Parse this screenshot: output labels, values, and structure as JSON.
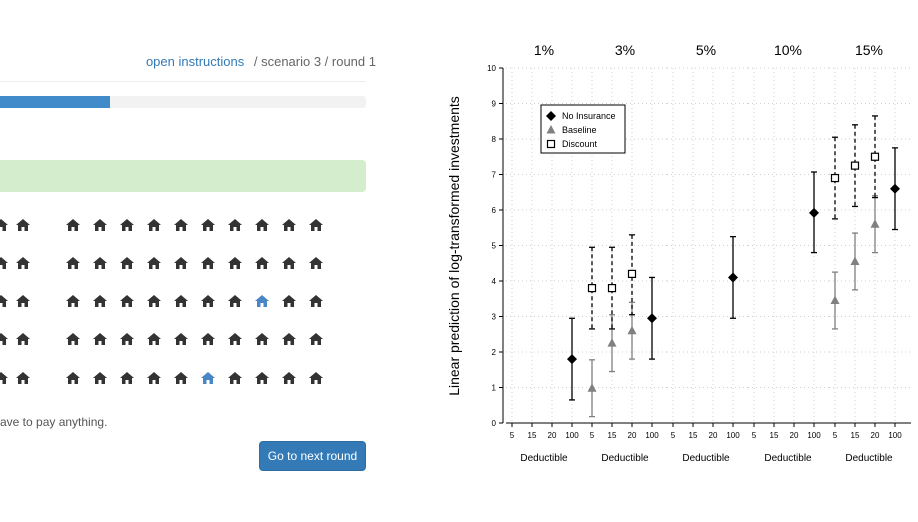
{
  "header": {
    "instructions_link": "open instructions",
    "scenario_round": "/ scenario 3 / round 1"
  },
  "progress": {
    "value_percent": 30
  },
  "houses": {
    "colors": {
      "default": "#333333",
      "highlight": "#4a86c6"
    },
    "icon": "house-icon",
    "rows": [
      [
        "d",
        "d",
        "d",
        "d",
        "d",
        "d",
        "d",
        "d",
        "d",
        "d",
        "d"
      ],
      [
        "d",
        "d",
        "d",
        "d",
        "d",
        "d",
        "d",
        "d",
        "d",
        "d",
        "d"
      ],
      [
        "d",
        "d",
        "d",
        "d",
        "d",
        "d",
        "d",
        "d",
        "h",
        "d",
        "d"
      ],
      [
        "d",
        "d",
        "d",
        "d",
        "d",
        "d",
        "d",
        "d",
        "d",
        "d",
        "d"
      ],
      [
        "d",
        "d",
        "d",
        "d",
        "d",
        "d",
        "h",
        "d",
        "d",
        "d",
        "d"
      ]
    ]
  },
  "notice_text": "ave to pay anything.",
  "next_button": {
    "label": "Go to next round"
  },
  "chart_data": {
    "type": "scatter",
    "ylabel": "Linear prediction of log-transformed investments",
    "ylim": [
      0,
      10
    ],
    "yticks": [
      "0",
      "1",
      "2",
      "3",
      "4",
      "5",
      "6",
      "7",
      "8",
      "9",
      "10"
    ],
    "panels": [
      "1%",
      "3%",
      "5%",
      "10%",
      "15%"
    ],
    "xtick_labels": [
      "5",
      "15",
      "20",
      "100"
    ],
    "xlabel": "Deductible",
    "legend": {
      "position": "top-left",
      "entries": [
        "No Insurance",
        "Baseline",
        "Discount"
      ]
    },
    "grid": true,
    "series": [
      {
        "name": "No Insurance",
        "marker": "diamond",
        "color": "#000000",
        "points": [
          {
            "panel": "1%",
            "x": "100",
            "y": 1.8,
            "lo": 0.65,
            "hi": 2.95
          },
          {
            "panel": "3%",
            "x": "100",
            "y": 2.95,
            "lo": 1.8,
            "hi": 4.1
          },
          {
            "panel": "5%",
            "x": "100",
            "y": 4.1,
            "lo": 2.95,
            "hi": 5.25
          },
          {
            "panel": "10%",
            "x": "100",
            "y": 5.92,
            "lo": 4.8,
            "hi": 7.07
          },
          {
            "panel": "15%",
            "x": "100",
            "y": 6.6,
            "lo": 5.45,
            "hi": 7.75
          }
        ]
      },
      {
        "name": "Baseline",
        "marker": "triangle",
        "color": "#808080",
        "points": [
          {
            "panel": "3%",
            "x": "5",
            "y": 0.98,
            "lo": 0.18,
            "hi": 1.78
          },
          {
            "panel": "3%",
            "x": "15",
            "y": 2.25,
            "lo": 1.45,
            "hi": 3.05
          },
          {
            "panel": "3%",
            "x": "20",
            "y": 2.6,
            "lo": 1.8,
            "hi": 3.4
          },
          {
            "panel": "15%",
            "x": "5",
            "y": 3.45,
            "lo": 2.65,
            "hi": 4.25
          },
          {
            "panel": "15%",
            "x": "15",
            "y": 4.55,
            "lo": 3.75,
            "hi": 5.35
          },
          {
            "panel": "15%",
            "x": "20",
            "y": 5.6,
            "lo": 4.8,
            "hi": 6.4
          }
        ]
      },
      {
        "name": "Discount",
        "marker": "square",
        "color": "#000000",
        "points": [
          {
            "panel": "3%",
            "x": "5",
            "y": 3.8,
            "lo": 2.65,
            "hi": 4.95
          },
          {
            "panel": "3%",
            "x": "15",
            "y": 3.8,
            "lo": 2.65,
            "hi": 4.95
          },
          {
            "panel": "3%",
            "x": "20",
            "y": 4.2,
            "lo": 3.05,
            "hi": 5.3
          },
          {
            "panel": "15%",
            "x": "5",
            "y": 6.9,
            "lo": 5.75,
            "hi": 8.05
          },
          {
            "panel": "15%",
            "x": "15",
            "y": 7.25,
            "lo": 6.1,
            "hi": 8.4
          },
          {
            "panel": "15%",
            "x": "20",
            "y": 7.5,
            "lo": 6.35,
            "hi": 8.65
          }
        ]
      }
    ]
  }
}
